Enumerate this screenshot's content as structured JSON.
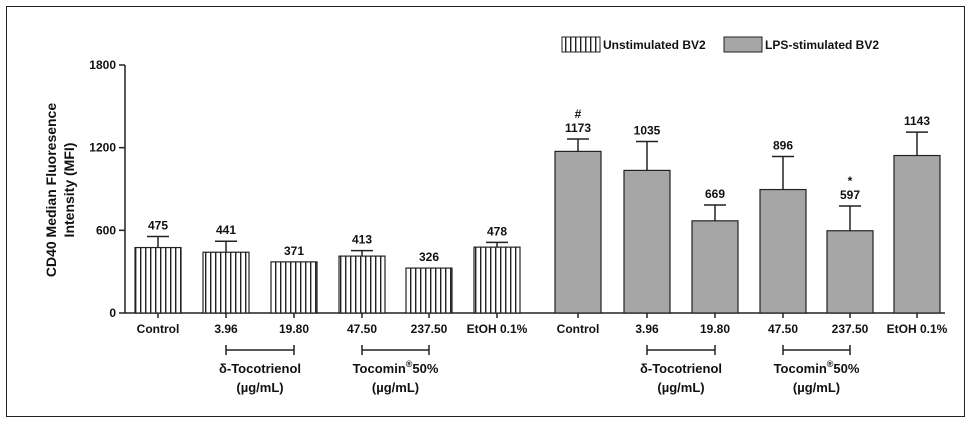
{
  "chart_data": {
    "type": "bar",
    "ylabel_line1": "CD40 Median Fluoresence",
    "ylabel_line2": "Intensity (MFI)",
    "ylim": [
      0,
      1800
    ],
    "yticks": [
      "0",
      "600",
      "1200",
      "1800"
    ],
    "categories": [
      "Control",
      "3.96",
      "19.80",
      "47.50",
      "237.50",
      "EtOH 0.1%",
      "Control",
      "3.96",
      "19.80",
      "47.50",
      "237.50",
      "EtOH 0.1%"
    ],
    "values": [
      475,
      441,
      371,
      413,
      326,
      478,
      1173,
      1035,
      669,
      896,
      597,
      1143
    ],
    "errors": [
      80,
      80,
      0,
      40,
      0,
      35,
      90,
      210,
      115,
      240,
      180,
      170
    ],
    "value_labels": [
      "475",
      "441",
      "371",
      "413",
      "326",
      "478",
      "1173",
      "1035",
      "669",
      "896",
      "597",
      "1143"
    ],
    "significance": [
      "",
      "",
      "",
      "",
      "",
      "",
      "#",
      "",
      "",
      "",
      "*",
      ""
    ],
    "series": [
      {
        "name": "Unstimulated BV2",
        "pattern": "vertical-stripes",
        "indices": [
          0,
          1,
          2,
          3,
          4,
          5
        ]
      },
      {
        "name": "LPS-stimulated BV2",
        "color": "#a6a6a6",
        "indices": [
          6,
          7,
          8,
          9,
          10,
          11
        ]
      }
    ],
    "legend_placement": "top-right",
    "groups": [
      {
        "name": "δ-Tocotrienol",
        "unit": "(µg/mL)",
        "from": 1,
        "to": 2
      },
      {
        "name": "Tocomin",
        "sup": "®",
        "suffix": "50%",
        "unit": "(µg/mL)",
        "from": 3,
        "to": 4
      },
      {
        "name": "δ-Tocotrienol",
        "unit": "(µg/mL)",
        "from": 7,
        "to": 8
      },
      {
        "name": "Tocomin",
        "sup": "®",
        "suffix": "50%",
        "unit": "(µg/mL)",
        "from": 9,
        "to": 10
      }
    ]
  }
}
